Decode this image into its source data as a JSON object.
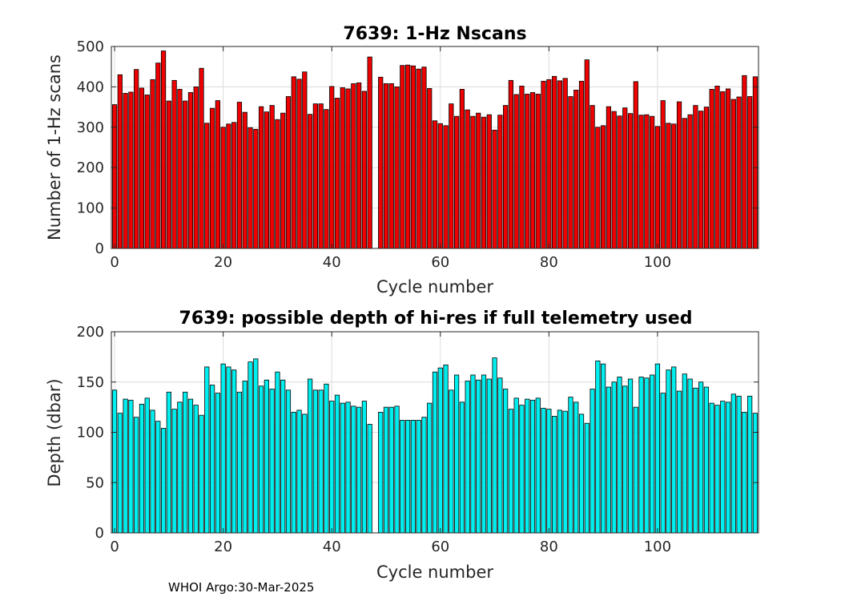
{
  "footer": "WHOI Argo:30-Mar-2025",
  "colors": {
    "nscans_bar": "#ee0000",
    "depth_bar": "#00eeee",
    "edge": "#000000",
    "grid": "#dcdcdc",
    "axis": "#262626"
  },
  "chart_data": [
    {
      "type": "bar",
      "title": "7639: 1-Hz Nscans",
      "xlabel": "Cycle number",
      "ylabel": "Number of 1-Hz scans",
      "xlim": [
        -0.6,
        118.6
      ],
      "ylim": [
        0,
        500
      ],
      "xticks": [
        "0",
        "20",
        "40",
        "60",
        "80",
        "100"
      ],
      "yticks": [
        "0",
        "100",
        "200",
        "300",
        "400",
        "500"
      ],
      "grid": true,
      "x": [
        0,
        1,
        2,
        3,
        4,
        5,
        6,
        7,
        8,
        9,
        10,
        11,
        12,
        13,
        14,
        15,
        16,
        17,
        18,
        19,
        20,
        21,
        22,
        23,
        24,
        25,
        26,
        27,
        28,
        29,
        30,
        31,
        32,
        33,
        34,
        35,
        36,
        37,
        38,
        39,
        40,
        41,
        42,
        43,
        44,
        45,
        46,
        47,
        49,
        50,
        51,
        52,
        53,
        54,
        55,
        56,
        57,
        58,
        59,
        60,
        61,
        62,
        63,
        64,
        65,
        66,
        67,
        68,
        69,
        70,
        71,
        72,
        73,
        74,
        75,
        76,
        77,
        78,
        79,
        80,
        81,
        82,
        83,
        84,
        85,
        86,
        87,
        88,
        89,
        90,
        91,
        92,
        93,
        94,
        95,
        96,
        97,
        98,
        99,
        100,
        101,
        102,
        103,
        104,
        105,
        106,
        107,
        108,
        109,
        110,
        111,
        112,
        113,
        114,
        115,
        116,
        117,
        118
      ],
      "values": [
        356,
        430,
        384,
        387,
        443,
        397,
        380,
        418,
        459,
        489,
        365,
        416,
        394,
        365,
        386,
        400,
        446,
        310,
        347,
        366,
        300,
        308,
        312,
        362,
        337,
        299,
        295,
        351,
        338,
        354,
        319,
        335,
        376,
        425,
        419,
        437,
        332,
        358,
        358,
        344,
        401,
        372,
        398,
        395,
        408,
        410,
        389,
        474,
        424,
        408,
        408,
        400,
        453,
        454,
        452,
        444,
        449,
        396,
        316,
        309,
        304,
        358,
        327,
        394,
        343,
        327,
        335,
        325,
        331,
        293,
        330,
        354,
        416,
        381,
        402,
        382,
        386,
        382,
        414,
        418,
        426,
        415,
        421,
        376,
        392,
        414,
        467,
        354,
        300,
        304,
        351,
        339,
        328,
        348,
        334,
        413,
        330,
        331,
        327,
        302,
        366,
        310,
        308,
        363,
        322,
        331,
        354,
        340,
        350,
        394,
        402,
        388,
        395,
        369,
        375,
        428,
        376,
        425
      ]
    },
    {
      "type": "bar",
      "title": "7639: possible depth of hi-res if full telemetry used",
      "xlabel": "Cycle number",
      "ylabel": "Depth (dbar)",
      "xlim": [
        -0.6,
        118.6
      ],
      "ylim": [
        0,
        200
      ],
      "xticks": [
        "0",
        "20",
        "40",
        "60",
        "80",
        "100"
      ],
      "yticks": [
        "0",
        "50",
        "100",
        "150",
        "200"
      ],
      "grid": true,
      "x": [
        0,
        1,
        2,
        3,
        4,
        5,
        6,
        7,
        8,
        9,
        10,
        11,
        12,
        13,
        14,
        15,
        16,
        17,
        18,
        19,
        20,
        21,
        22,
        23,
        24,
        25,
        26,
        27,
        28,
        29,
        30,
        31,
        32,
        33,
        34,
        35,
        36,
        37,
        38,
        39,
        40,
        41,
        42,
        43,
        44,
        45,
        46,
        47,
        49,
        50,
        51,
        52,
        53,
        54,
        55,
        56,
        57,
        58,
        59,
        60,
        61,
        62,
        63,
        64,
        65,
        66,
        67,
        68,
        69,
        70,
        71,
        72,
        73,
        74,
        75,
        76,
        77,
        78,
        79,
        80,
        81,
        82,
        83,
        84,
        85,
        86,
        87,
        88,
        89,
        90,
        91,
        92,
        93,
        94,
        95,
        96,
        97,
        98,
        99,
        100,
        101,
        102,
        103,
        104,
        105,
        106,
        107,
        108,
        109,
        110,
        111,
        112,
        113,
        114,
        115,
        116,
        117,
        118
      ],
      "values": [
        142,
        119,
        133,
        132,
        115,
        128,
        134,
        122,
        111,
        104,
        140,
        123,
        130,
        140,
        133,
        127,
        117,
        165,
        147,
        139,
        168,
        165,
        162,
        140,
        151,
        170,
        173,
        146,
        152,
        143,
        160,
        152,
        142,
        120,
        122,
        118,
        153,
        142,
        142,
        148,
        131,
        137,
        129,
        130,
        126,
        125,
        131,
        108,
        120,
        125,
        125,
        126,
        112,
        112,
        112,
        112,
        115,
        129,
        160,
        164,
        167,
        142,
        157,
        130,
        151,
        157,
        152,
        157,
        153,
        174,
        154,
        143,
        123,
        134,
        127,
        133,
        132,
        134,
        124,
        123,
        116,
        122,
        121,
        135,
        130,
        118,
        109,
        143,
        171,
        168,
        145,
        150,
        155,
        146,
        153,
        125,
        155,
        154,
        157,
        168,
        139,
        162,
        165,
        141,
        158,
        153,
        144,
        150,
        145,
        129,
        127,
        131,
        130,
        138,
        136,
        120,
        136,
        119
      ]
    }
  ]
}
